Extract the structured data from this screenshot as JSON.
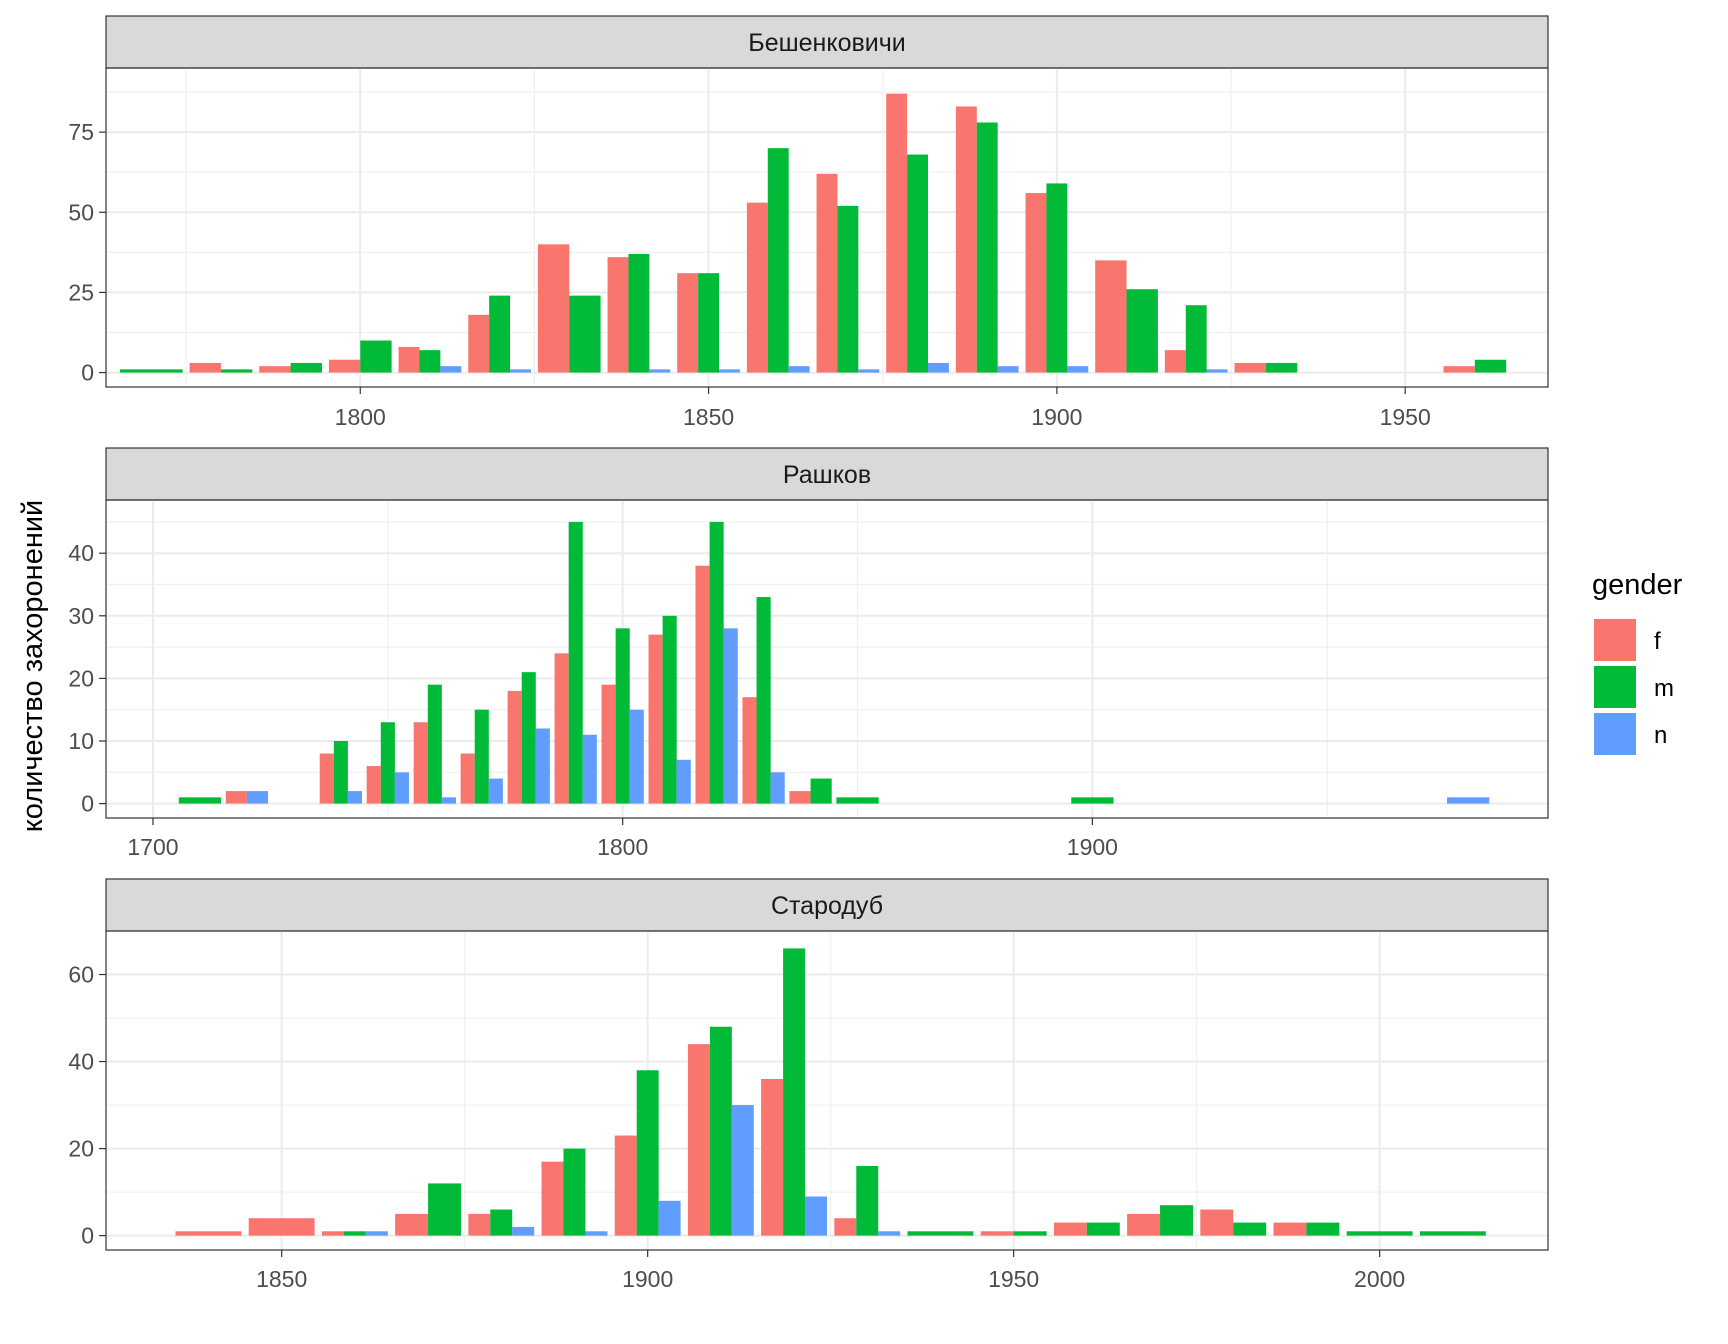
{
  "ylabel": "количество захоронений",
  "legend": {
    "title": "gender",
    "items": [
      {
        "key": "f",
        "label": "f",
        "color": "#F8766D"
      },
      {
        "key": "m",
        "label": "m",
        "color": "#00BA38"
      },
      {
        "key": "n",
        "label": "n",
        "color": "#619CFF"
      }
    ]
  },
  "chart_data": [
    {
      "type": "bar",
      "title": "Бешенковичи",
      "xlim": [
        1763.5,
        1970.5
      ],
      "ylim": [
        -4.5,
        95
      ],
      "xticks": [
        1800,
        1850,
        1900,
        1950
      ],
      "yticks": [
        0,
        25,
        50,
        75
      ],
      "bin_width": 10,
      "bins": [
        1770,
        1780,
        1790,
        1800,
        1810,
        1820,
        1830,
        1840,
        1850,
        1860,
        1870,
        1880,
        1890,
        1900,
        1910,
        1920,
        1930,
        1960
      ],
      "f": [
        0,
        3,
        2,
        4,
        8,
        18,
        40,
        36,
        31,
        53,
        62,
        87,
        83,
        56,
        35,
        7,
        3,
        2
      ],
      "m": [
        1,
        1,
        3,
        10,
        7,
        24,
        24,
        37,
        31,
        70,
        52,
        68,
        78,
        59,
        26,
        21,
        3,
        4
      ],
      "n": [
        0,
        0,
        0,
        0,
        2,
        1,
        0,
        1,
        1,
        2,
        1,
        3,
        2,
        2,
        0,
        1,
        0,
        0
      ]
    },
    {
      "type": "bar",
      "title": "Рашков",
      "xlim": [
        1690,
        1997
      ],
      "ylim": [
        -2.3,
        48.5
      ],
      "xticks": [
        1700,
        1800,
        1900
      ],
      "yticks": [
        0,
        10,
        20,
        30,
        40
      ],
      "bin_width": 10,
      "bins": [
        1710,
        1720,
        1740,
        1750,
        1760,
        1770,
        1780,
        1790,
        1800,
        1810,
        1820,
        1830,
        1840,
        1850,
        1900,
        1980
      ],
      "f": [
        0,
        2,
        8,
        6,
        13,
        8,
        18,
        24,
        19,
        27,
        38,
        17,
        2,
        0,
        0,
        0
      ],
      "m": [
        1,
        0,
        10,
        13,
        19,
        15,
        21,
        45,
        28,
        30,
        45,
        33,
        4,
        1,
        1,
        0
      ],
      "n": [
        0,
        2,
        2,
        5,
        1,
        4,
        12,
        11,
        15,
        7,
        28,
        5,
        0,
        0,
        0,
        1
      ]
    },
    {
      "type": "bar",
      "title": "Стародуб",
      "xlim": [
        1826,
        2023
      ],
      "ylim": [
        -3.3,
        70
      ],
      "xticks": [
        1850,
        1900,
        1950,
        2000
      ],
      "yticks": [
        0,
        20,
        40,
        60
      ],
      "bin_width": 10,
      "bins": [
        1840,
        1850,
        1860,
        1870,
        1880,
        1890,
        1900,
        1910,
        1920,
        1930,
        1940,
        1950,
        1960,
        1970,
        1980,
        1990,
        2000,
        2010
      ],
      "f": [
        1,
        4,
        1,
        5,
        5,
        17,
        23,
        44,
        36,
        4,
        0,
        1,
        3,
        5,
        6,
        3,
        0,
        0
      ],
      "m": [
        0,
        0,
        1,
        12,
        6,
        20,
        38,
        48,
        66,
        16,
        1,
        1,
        3,
        7,
        3,
        3,
        1,
        1
      ],
      "n": [
        0,
        0,
        1,
        0,
        2,
        1,
        8,
        30,
        9,
        1,
        0,
        0,
        0,
        0,
        0,
        0,
        0,
        0
      ]
    }
  ]
}
